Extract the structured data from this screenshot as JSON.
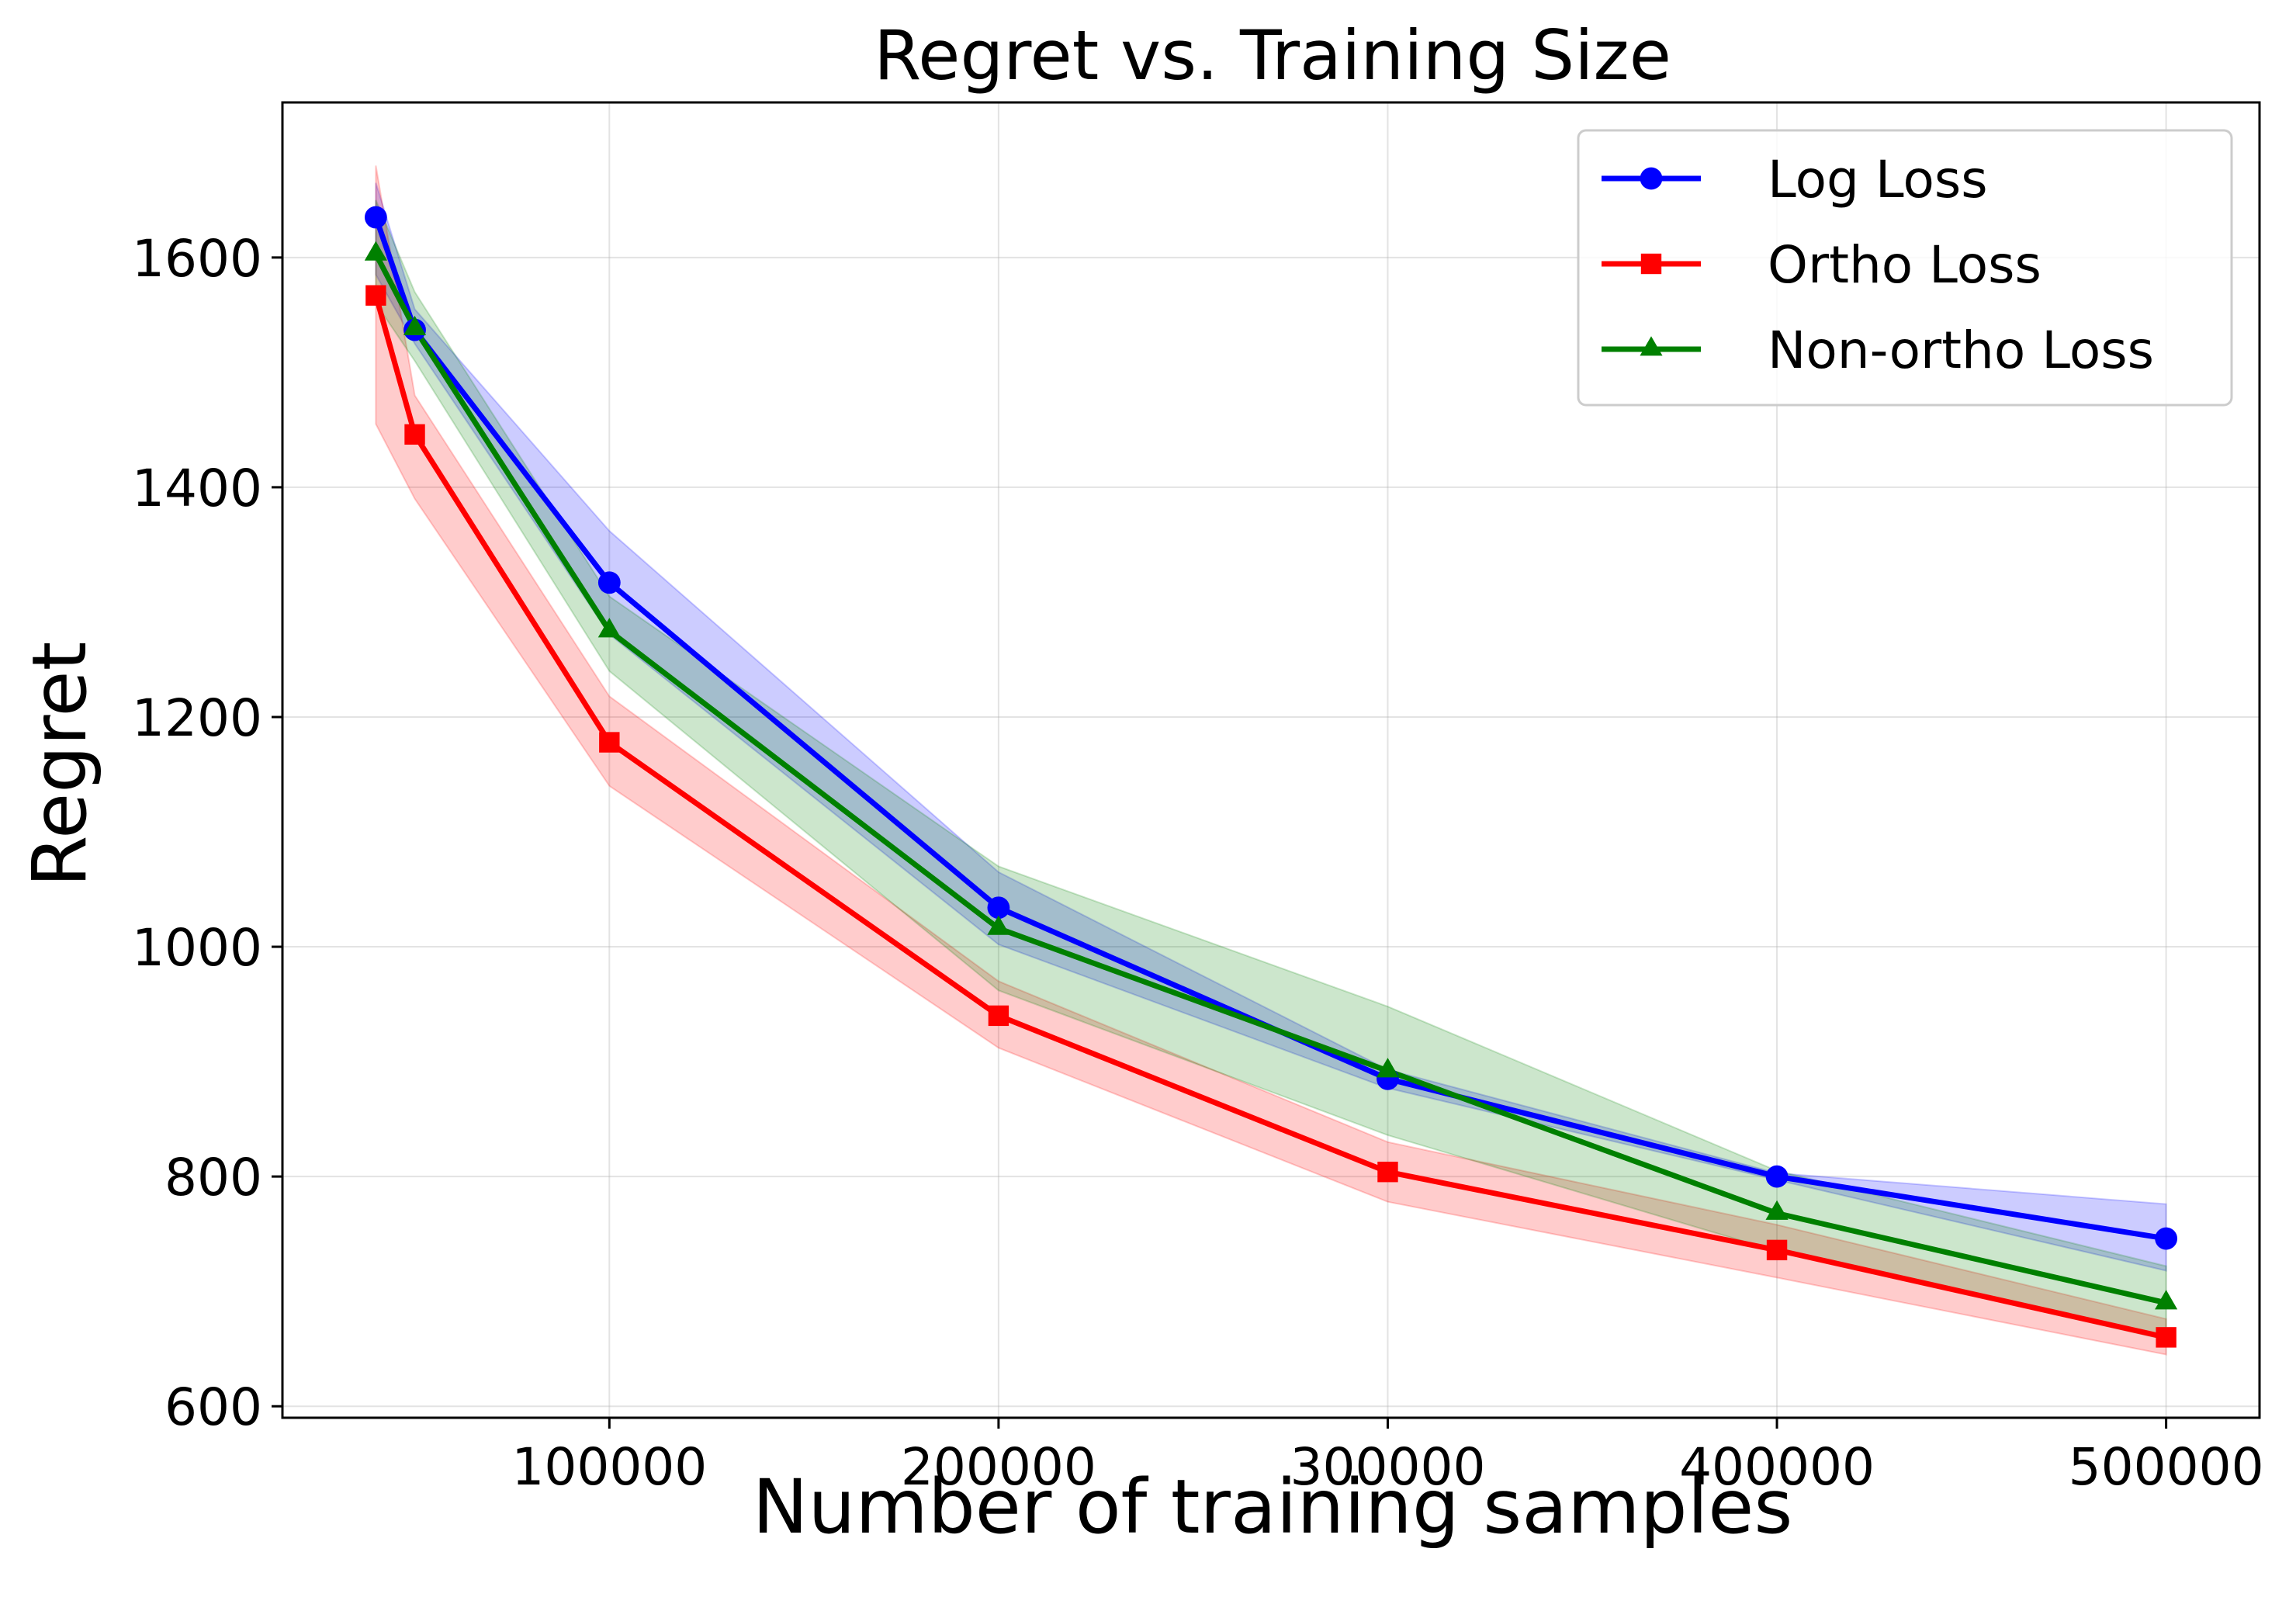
{
  "chart_data": {
    "type": "line",
    "title": "Regret vs. Training Size",
    "xlabel": "Number of training samples",
    "ylabel": "Regret",
    "x": [
      40000,
      50000,
      100000,
      200000,
      300000,
      400000,
      500000
    ],
    "xticks": [
      100000,
      200000,
      300000,
      400000,
      500000
    ],
    "xtick_labels": [
      "100000",
      "200000",
      "300000",
      "400000",
      "500000"
    ],
    "yticks": [
      600,
      800,
      1000,
      1200,
      1400,
      1600
    ],
    "ytick_labels": [
      "600",
      "800",
      "1000",
      "1200",
      "1400",
      "1600"
    ],
    "xlim": [
      16000,
      524000
    ],
    "ylim": [
      590,
      1735
    ],
    "grid": true,
    "legend_position": "top-right",
    "series": [
      {
        "name": "Log Loss",
        "color": "#0000ff",
        "marker": "circle",
        "values": [
          1635,
          1537,
          1317,
          1034,
          885,
          800,
          746
        ],
        "lower": [
          1585,
          1525,
          1272,
          1002,
          877,
          797,
          718
        ],
        "upper": [
          1665,
          1555,
          1362,
          1065,
          893,
          803,
          776
        ]
      },
      {
        "name": "Ortho Loss",
        "color": "#ff0000",
        "marker": "square",
        "values": [
          1567,
          1446,
          1178,
          940,
          804,
          736,
          660
        ],
        "lower": [
          1455,
          1390,
          1140,
          912,
          778,
          712,
          645
        ],
        "upper": [
          1680,
          1480,
          1218,
          970,
          830,
          758,
          676
        ]
      },
      {
        "name": "Non-ortho Loss",
        "color": "#008000",
        "marker": "triangle",
        "values": [
          1603,
          1538,
          1275,
          1016,
          892,
          768,
          690
        ],
        "lower": [
          1560,
          1510,
          1240,
          962,
          836,
          735,
          658
        ],
        "upper": [
          1650,
          1570,
          1305,
          1070,
          948,
          805,
          722
        ]
      }
    ]
  }
}
